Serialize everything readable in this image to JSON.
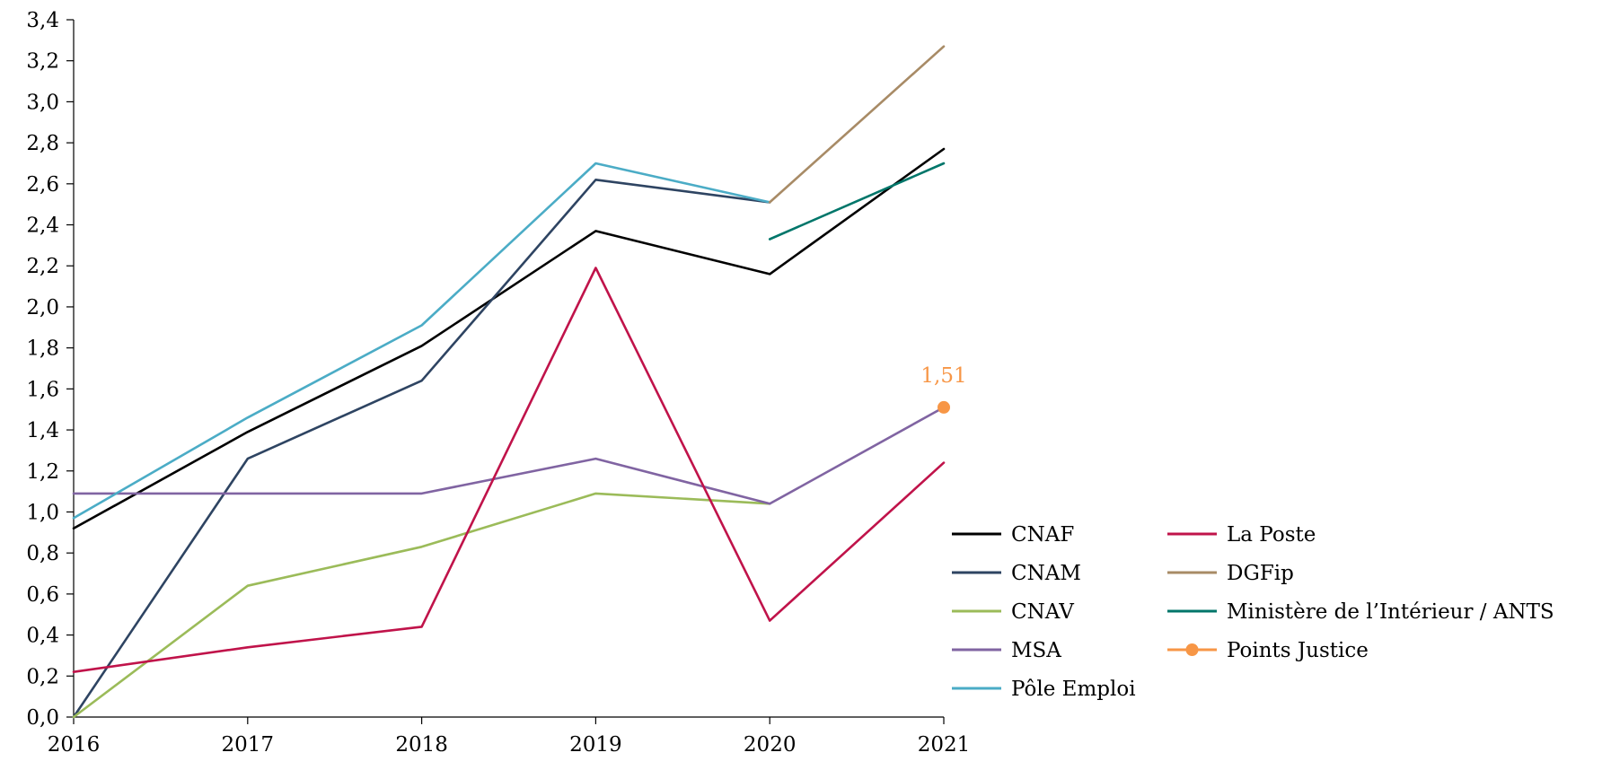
{
  "chart_data": {
    "type": "line",
    "title": "",
    "xlabel": "",
    "ylabel": "",
    "x": [
      "2016",
      "2017",
      "2018",
      "2019",
      "2020",
      "2021"
    ],
    "ylim": [
      0,
      3.4
    ],
    "ytick_step": 0.2,
    "y_ticks": [
      "0,0",
      "0,2",
      "0,4",
      "0,6",
      "0,8",
      "1,0",
      "1,2",
      "1,4",
      "1,6",
      "1,8",
      "2,0",
      "2,2",
      "2,4",
      "2,6",
      "2,8",
      "3,0",
      "3,2",
      "3,4"
    ],
    "grid": false,
    "legend_position": "bottom-right",
    "series": [
      {
        "name": "CNAF",
        "color": "#000000",
        "values": [
          0.92,
          1.39,
          1.81,
          2.37,
          2.16,
          2.77
        ]
      },
      {
        "name": "CNAM",
        "color": "#2e4462",
        "values": [
          0.0,
          1.26,
          1.64,
          2.62,
          2.51,
          null
        ]
      },
      {
        "name": "CNAV",
        "color": "#9bbb59",
        "values": [
          0.0,
          0.64,
          0.83,
          1.09,
          1.04,
          null
        ]
      },
      {
        "name": "MSA",
        "color": "#8064a2",
        "values": [
          1.09,
          1.09,
          1.09,
          1.26,
          1.04,
          1.51
        ]
      },
      {
        "name": "Pôle Emploi",
        "color": "#4bacc6",
        "values": [
          0.97,
          1.46,
          1.91,
          2.7,
          2.51,
          null
        ]
      },
      {
        "name": "La Poste",
        "color": "#c0134a",
        "values": [
          0.22,
          0.34,
          0.44,
          2.19,
          0.47,
          1.24
        ]
      },
      {
        "name": "DGFip",
        "color": "#a88b66",
        "values": [
          null,
          null,
          null,
          null,
          2.51,
          3.27
        ]
      },
      {
        "name": "Ministère de l’Intérieur / ANTS",
        "color": "#00766a",
        "values": [
          null,
          null,
          null,
          null,
          2.33,
          2.7
        ]
      },
      {
        "name": "Points Justice",
        "color": "#f79646",
        "values": [
          null,
          null,
          null,
          null,
          null,
          1.51
        ],
        "marker": true,
        "data_label": "1,51"
      }
    ]
  }
}
